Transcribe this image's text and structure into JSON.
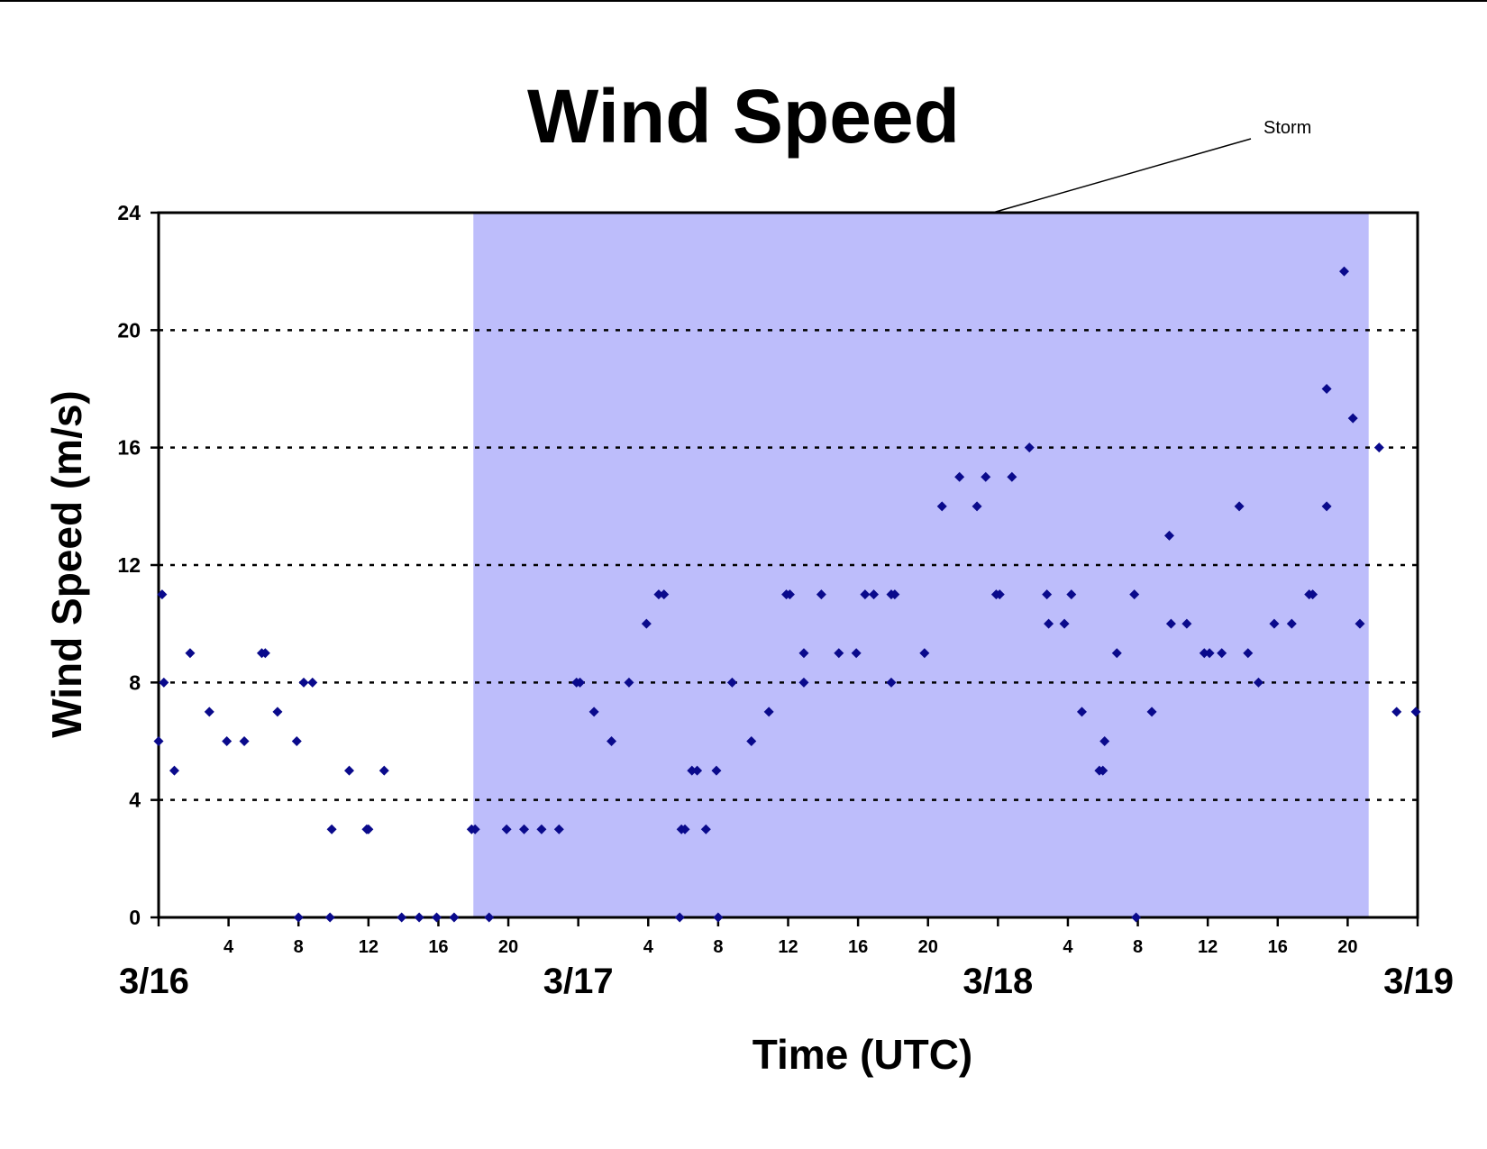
{
  "chart_data": {
    "type": "scatter",
    "title": "Wind Speed",
    "xlabel": "Time (UTC)",
    "ylabel": "Wind Speed (m/s)",
    "ylim": [
      0,
      24
    ],
    "y_ticks": [
      0,
      4,
      8,
      12,
      16,
      20,
      24
    ],
    "x_range_hours": [
      0,
      72
    ],
    "hour_ticks": [
      {
        "hour": 4,
        "label": "4"
      },
      {
        "hour": 8,
        "label": "8"
      },
      {
        "hour": 12,
        "label": "12"
      },
      {
        "hour": 16,
        "label": "16"
      },
      {
        "hour": 20,
        "label": "20"
      },
      {
        "hour": 28,
        "label": "4"
      },
      {
        "hour": 32,
        "label": "8"
      },
      {
        "hour": 36,
        "label": "12"
      },
      {
        "hour": 40,
        "label": "16"
      },
      {
        "hour": 44,
        "label": "20"
      },
      {
        "hour": 52,
        "label": "4"
      },
      {
        "hour": 56,
        "label": "8"
      },
      {
        "hour": 60,
        "label": "12"
      },
      {
        "hour": 64,
        "label": "16"
      },
      {
        "hour": 68,
        "label": "20"
      }
    ],
    "day_labels": [
      {
        "hour": 0,
        "label": "3/16"
      },
      {
        "hour": 24,
        "label": "3/17"
      },
      {
        "hour": 48,
        "label": "3/18"
      },
      {
        "hour": 72,
        "label": "3/19"
      }
    ],
    "grid": "horizontal dotted at 4, 8, 12, 16, 20",
    "shaded_region": {
      "start_hour": 18,
      "end_hour": 69.2,
      "color": "#bdbdfb",
      "label": "Storm"
    },
    "marker_color": "#0a0a8c",
    "series": [
      {
        "points": [
          {
            "x": 0.0,
            "y": 6
          },
          {
            "x": 0.2,
            "y": 11
          },
          {
            "x": 0.3,
            "y": 8
          },
          {
            "x": 0.9,
            "y": 5
          },
          {
            "x": 1.8,
            "y": 9
          },
          {
            "x": 2.9,
            "y": 7
          },
          {
            "x": 3.9,
            "y": 6
          },
          {
            "x": 4.9,
            "y": 6
          },
          {
            "x": 5.9,
            "y": 9
          },
          {
            "x": 6.1,
            "y": 9
          },
          {
            "x": 6.8,
            "y": 7
          },
          {
            "x": 7.9,
            "y": 6
          },
          {
            "x": 8.0,
            "y": 0
          },
          {
            "x": 8.3,
            "y": 8
          },
          {
            "x": 8.8,
            "y": 8
          },
          {
            "x": 9.8,
            "y": 0
          },
          {
            "x": 9.9,
            "y": 3
          },
          {
            "x": 10.9,
            "y": 5
          },
          {
            "x": 11.9,
            "y": 3
          },
          {
            "x": 12.0,
            "y": 3
          },
          {
            "x": 12.9,
            "y": 5
          },
          {
            "x": 13.9,
            "y": 0
          },
          {
            "x": 14.9,
            "y": 0
          },
          {
            "x": 15.9,
            "y": 0
          },
          {
            "x": 16.9,
            "y": 0
          },
          {
            "x": 17.9,
            "y": 3
          },
          {
            "x": 18.1,
            "y": 3
          },
          {
            "x": 18.9,
            "y": 0
          },
          {
            "x": 19.9,
            "y": 3
          },
          {
            "x": 20.9,
            "y": 3
          },
          {
            "x": 21.9,
            "y": 3
          },
          {
            "x": 22.9,
            "y": 3
          },
          {
            "x": 23.9,
            "y": 8
          },
          {
            "x": 24.1,
            "y": 8
          },
          {
            "x": 24.9,
            "y": 7
          },
          {
            "x": 25.9,
            "y": 6
          },
          {
            "x": 26.9,
            "y": 8
          },
          {
            "x": 27.9,
            "y": 10
          },
          {
            "x": 28.6,
            "y": 11
          },
          {
            "x": 28.9,
            "y": 11
          },
          {
            "x": 29.8,
            "y": 0
          },
          {
            "x": 29.9,
            "y": 3
          },
          {
            "x": 30.1,
            "y": 3
          },
          {
            "x": 30.5,
            "y": 5
          },
          {
            "x": 30.8,
            "y": 5
          },
          {
            "x": 31.3,
            "y": 3
          },
          {
            "x": 31.9,
            "y": 5
          },
          {
            "x": 32.0,
            "y": 0
          },
          {
            "x": 32.8,
            "y": 8
          },
          {
            "x": 33.9,
            "y": 6
          },
          {
            "x": 34.9,
            "y": 7
          },
          {
            "x": 35.9,
            "y": 11
          },
          {
            "x": 36.1,
            "y": 11
          },
          {
            "x": 36.9,
            "y": 9
          },
          {
            "x": 36.9,
            "y": 8
          },
          {
            "x": 37.9,
            "y": 11
          },
          {
            "x": 38.9,
            "y": 9
          },
          {
            "x": 39.9,
            "y": 9
          },
          {
            "x": 40.4,
            "y": 11
          },
          {
            "x": 40.9,
            "y": 11
          },
          {
            "x": 41.9,
            "y": 8
          },
          {
            "x": 41.9,
            "y": 11
          },
          {
            "x": 42.1,
            "y": 11
          },
          {
            "x": 43.8,
            "y": 9
          },
          {
            "x": 44.8,
            "y": 14
          },
          {
            "x": 45.8,
            "y": 15
          },
          {
            "x": 46.8,
            "y": 14
          },
          {
            "x": 47.3,
            "y": 15
          },
          {
            "x": 47.9,
            "y": 11
          },
          {
            "x": 48.1,
            "y": 11
          },
          {
            "x": 48.8,
            "y": 15
          },
          {
            "x": 49.8,
            "y": 16
          },
          {
            "x": 50.8,
            "y": 11
          },
          {
            "x": 50.9,
            "y": 10
          },
          {
            "x": 51.8,
            "y": 10
          },
          {
            "x": 52.2,
            "y": 11
          },
          {
            "x": 52.8,
            "y": 7
          },
          {
            "x": 53.8,
            "y": 5
          },
          {
            "x": 54.0,
            "y": 5
          },
          {
            "x": 54.1,
            "y": 6
          },
          {
            "x": 54.8,
            "y": 9
          },
          {
            "x": 55.8,
            "y": 11
          },
          {
            "x": 55.9,
            "y": 0
          },
          {
            "x": 56.8,
            "y": 7
          },
          {
            "x": 57.8,
            "y": 13
          },
          {
            "x": 57.9,
            "y": 10
          },
          {
            "x": 58.8,
            "y": 10
          },
          {
            "x": 59.8,
            "y": 9
          },
          {
            "x": 60.1,
            "y": 9
          },
          {
            "x": 60.8,
            "y": 9
          },
          {
            "x": 61.8,
            "y": 14
          },
          {
            "x": 62.3,
            "y": 9
          },
          {
            "x": 62.9,
            "y": 8
          },
          {
            "x": 63.8,
            "y": 10
          },
          {
            "x": 64.8,
            "y": 10
          },
          {
            "x": 65.8,
            "y": 11
          },
          {
            "x": 66.0,
            "y": 11
          },
          {
            "x": 66.8,
            "y": 18
          },
          {
            "x": 66.8,
            "y": 14
          },
          {
            "x": 67.8,
            "y": 22
          },
          {
            "x": 68.3,
            "y": 17
          },
          {
            "x": 68.7,
            "y": 10
          },
          {
            "x": 69.8,
            "y": 16
          },
          {
            "x": 70.8,
            "y": 7
          },
          {
            "x": 71.9,
            "y": 7
          }
        ]
      }
    ]
  }
}
